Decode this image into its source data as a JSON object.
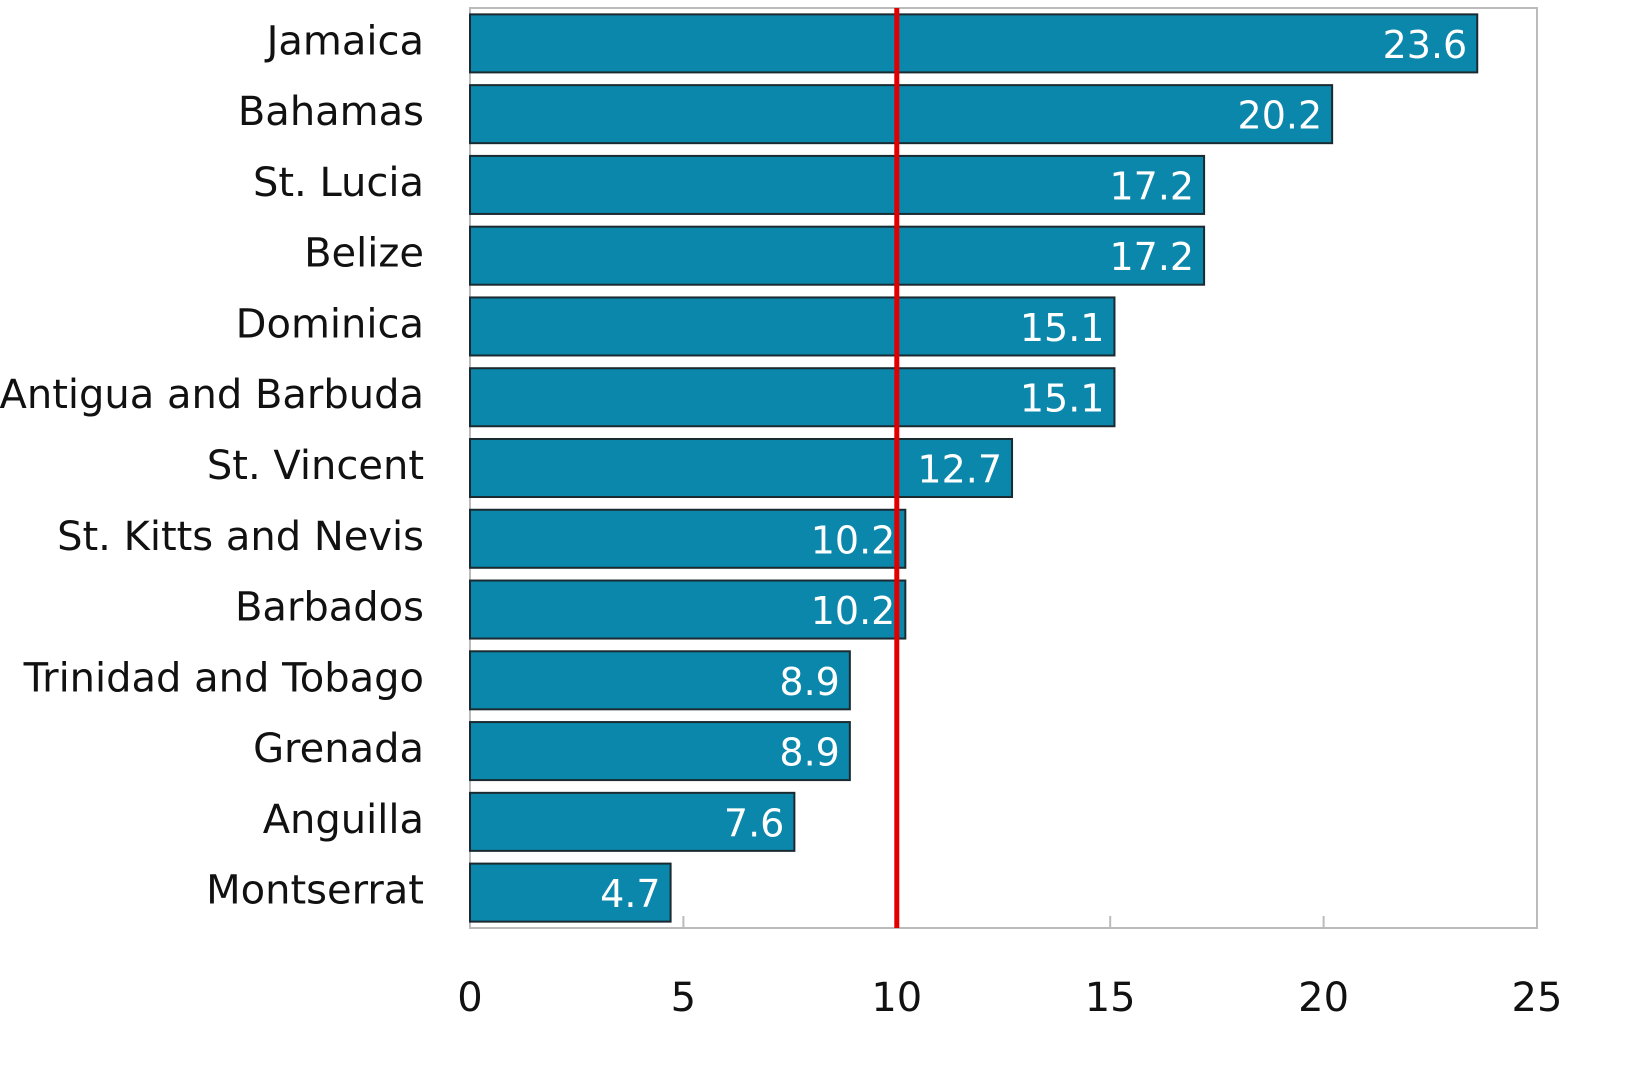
{
  "chart_data": {
    "type": "bar",
    "orientation": "horizontal",
    "categories": [
      "Jamaica",
      "Bahamas",
      "St. Lucia",
      "Belize",
      "Dominica",
      "Antigua and Barbuda",
      "St. Vincent",
      "St. Kitts and Nevis",
      "Barbados",
      "Trinidad and Tobago",
      "Grenada",
      "Anguilla",
      "Montserrat"
    ],
    "values": [
      23.6,
      20.2,
      17.2,
      17.2,
      15.1,
      15.1,
      12.7,
      10.2,
      10.2,
      8.9,
      8.9,
      7.6,
      4.7
    ],
    "color": "#0a87ab",
    "xlim": [
      0,
      25
    ],
    "xticks": [
      0,
      5,
      10,
      15,
      20,
      25
    ],
    "reference_line": 10,
    "reference_color": "#e00000"
  }
}
